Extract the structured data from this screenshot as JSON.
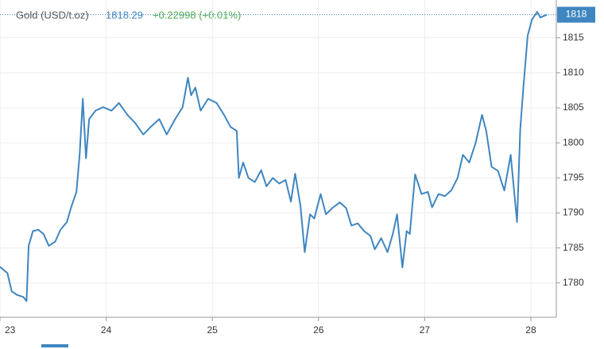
{
  "chart_data": {
    "type": "line",
    "title": "Gold (USD/t.oz)",
    "price": "1818.29",
    "change": "+0.22998 (+0.01%)",
    "last_label": "1818",
    "x": [
      23.0,
      23.07,
      23.11,
      23.16,
      23.22,
      23.25,
      23.27,
      23.31,
      23.36,
      23.41,
      23.46,
      23.52,
      23.57,
      23.63,
      23.67,
      23.72,
      23.75,
      23.78,
      23.81,
      23.84,
      23.9,
      23.97,
      24.05,
      24.12,
      24.2,
      24.27,
      24.35,
      24.42,
      24.5,
      24.57,
      24.65,
      24.72,
      24.77,
      24.8,
      24.84,
      24.89,
      24.96,
      25.04,
      25.11,
      25.17,
      25.23,
      25.25,
      25.29,
      25.34,
      25.4,
      25.46,
      25.51,
      25.57,
      25.63,
      25.69,
      25.74,
      25.78,
      25.83,
      25.87,
      25.92,
      25.96,
      26.02,
      26.07,
      26.13,
      26.2,
      26.26,
      26.31,
      26.37,
      26.43,
      26.49,
      26.53,
      26.59,
      26.65,
      26.7,
      26.74,
      26.79,
      26.83,
      26.86,
      26.91,
      26.97,
      27.03,
      27.07,
      27.13,
      27.19,
      27.25,
      27.31,
      27.36,
      27.42,
      27.48,
      27.54,
      27.58,
      27.63,
      27.69,
      27.75,
      27.81,
      27.87,
      27.9,
      27.93,
      27.97,
      28.01,
      28.06,
      28.09,
      28.15
    ],
    "series": [
      {
        "name": "Gold (USD/t.oz)",
        "color": "#3f86c0",
        "values": [
          1782.3,
          1781.4,
          1778.8,
          1778.3,
          1778.0,
          1777.4,
          1785.3,
          1787.4,
          1787.6,
          1787.0,
          1785.3,
          1785.9,
          1787.6,
          1788.7,
          1790.8,
          1793.0,
          1798.3,
          1806.3,
          1797.8,
          1803.4,
          1804.6,
          1805.1,
          1804.6,
          1805.7,
          1804.0,
          1802.9,
          1801.2,
          1802.3,
          1803.4,
          1801.2,
          1803.4,
          1805.1,
          1809.3,
          1806.8,
          1807.9,
          1804.6,
          1806.3,
          1805.7,
          1804.0,
          1802.3,
          1801.7,
          1795.0,
          1797.2,
          1795.0,
          1794.4,
          1796.1,
          1793.8,
          1795.0,
          1794.2,
          1794.7,
          1791.6,
          1795.6,
          1791.0,
          1784.4,
          1789.8,
          1789.2,
          1792.7,
          1789.8,
          1790.7,
          1791.5,
          1790.7,
          1788.2,
          1788.5,
          1787.4,
          1786.7,
          1784.8,
          1786.4,
          1784.4,
          1787.0,
          1789.8,
          1782.2,
          1787.4,
          1787.0,
          1795.5,
          1792.7,
          1793.0,
          1790.8,
          1792.7,
          1792.4,
          1793.2,
          1795.0,
          1798.3,
          1797.2,
          1800.0,
          1804.0,
          1801.7,
          1796.6,
          1796.0,
          1793.2,
          1798.3,
          1788.7,
          1801.9,
          1808.0,
          1815.3,
          1817.6,
          1818.7,
          1817.9,
          1818.3
        ]
      }
    ],
    "xlim": [
      23,
      28.15
    ],
    "xticks": [
      23,
      24,
      25,
      26,
      27,
      28
    ],
    "ylim": [
      1775.1,
      1820.4
    ],
    "yticks": [
      1780,
      1785,
      1790,
      1795,
      1800,
      1805,
      1810,
      1815
    ],
    "grid": true
  }
}
